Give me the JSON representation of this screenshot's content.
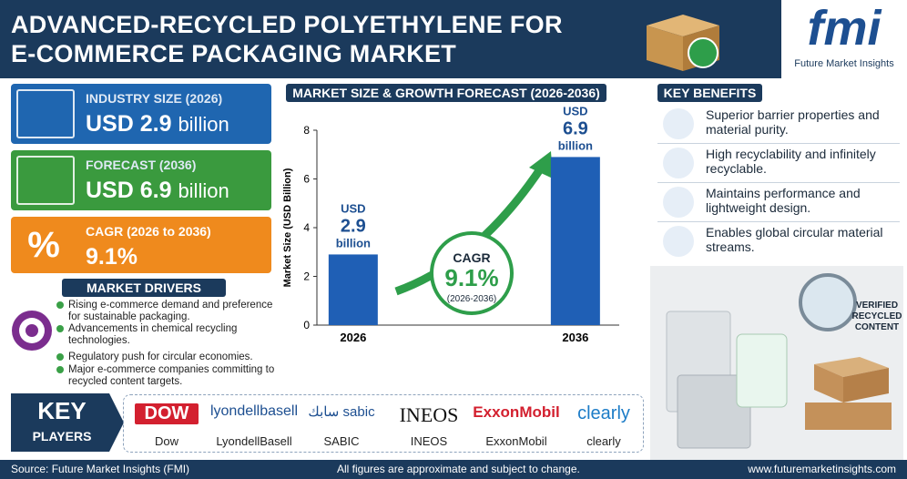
{
  "header": {
    "title_lines": [
      "ADVANCED-RECYCLED POLYETHYLENE FOR",
      "E-COMMERCE PACKAGING MARKET"
    ]
  },
  "brand": {
    "logo": "fmi",
    "name": "Future Market Insights"
  },
  "stats": [
    {
      "label": "INDUSTRY SIZE (2026)",
      "value": "USD 2.9",
      "unit": "billion"
    },
    {
      "label": "FORECAST (2036)",
      "value": "USD 6.9",
      "unit": "billion"
    },
    {
      "label": "CAGR (2026 to 2036)",
      "value": "9.1%"
    }
  ],
  "drivers": {
    "title": "MARKET DRIVERS",
    "items": [
      "Rising e-commerce demand and preference for sustainable packaging.",
      "Advancements in chemical recycling technologies.",
      "Regulatory push for circular economies.",
      "Major e-commerce companies committing to recycled content targets."
    ]
  },
  "chart_data": {
    "type": "bar",
    "title": "MARKET SIZE & GROWTH FORECAST (2026-2036)",
    "y_label": "Market Size (USD Billion)",
    "categories": [
      "2026",
      "2036"
    ],
    "values": [
      2.9,
      6.9
    ],
    "value_prefix": "USD",
    "value_suffix": "billion",
    "color": "#1f5fb5",
    "ylim": [
      0,
      8
    ],
    "yticks": [
      0,
      2,
      4,
      6,
      8
    ],
    "annotation": {
      "title": "CAGR",
      "value": "9.1%",
      "period": "(2026-2036)"
    }
  },
  "benefits": {
    "title": "KEY BENEFITS",
    "items": [
      "Superior barrier properties and material purity.",
      "High recyclability and infinitely recyclable.",
      "Maintains performance and lightweight design.",
      "Enables global circular material streams."
    ]
  },
  "image_badge": [
    "VERIFIED",
    "RECYCLED",
    "CONTENT"
  ],
  "players": {
    "title": [
      "KEY",
      "PLAYERS"
    ],
    "items": [
      {
        "logo": "DOW",
        "name": "Dow"
      },
      {
        "logo": "lyondellbasell",
        "name": "LyondellBasell"
      },
      {
        "logo": "سابك sabic",
        "name": "SABIC"
      },
      {
        "logo": "INEOS",
        "name": "INEOS"
      },
      {
        "logo": "ExxonMobil",
        "name": "ExxonMobil"
      },
      {
        "logo": "clearly",
        "name": "clearly"
      }
    ]
  },
  "footer": {
    "source": "Source: Future Market Insights (FMI)",
    "note": "All figures are approximate and subject to change.",
    "url": "www.futuremarketinsights.com"
  }
}
